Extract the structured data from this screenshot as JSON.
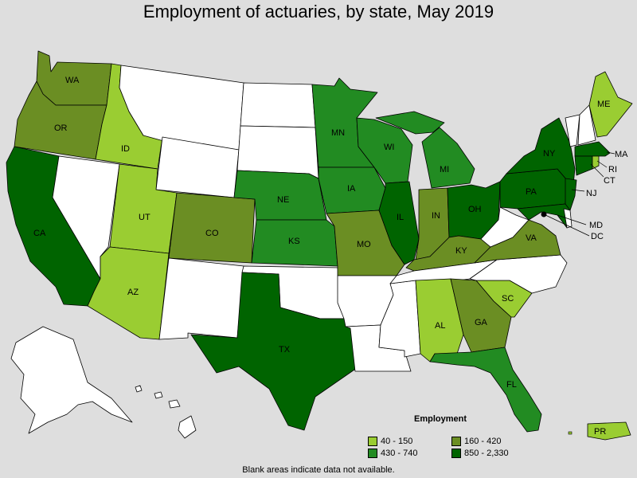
{
  "title": "Employment of actuaries, by state, May 2019",
  "legend": {
    "title": "Employment",
    "items": [
      {
        "label": "40 - 150",
        "color": "#9acd32"
      },
      {
        "label": "160 - 420",
        "color": "#6b8e23"
      },
      {
        "label": "430 - 740",
        "color": "#228b22"
      },
      {
        "label": "850 - 2,330",
        "color": "#006400"
      }
    ]
  },
  "footnote": "Blank areas indicate data not available.",
  "colors": {
    "blank": "#ffffff",
    "background": "#dedede"
  },
  "states": {
    "WA": "WA",
    "OR": "OR",
    "CA": "CA",
    "ID": "ID",
    "UT": "UT",
    "AZ": "AZ",
    "CO": "CO",
    "NE": "NE",
    "KS": "KS",
    "MN": "MN",
    "IA": "IA",
    "MO": "MO",
    "WI": "WI",
    "IL": "IL",
    "MI": "MI",
    "IN": "IN",
    "OH": "OH",
    "KY": "KY",
    "TX": "TX",
    "AL": "AL",
    "GA": "GA",
    "FL": "FL",
    "SC": "SC",
    "VA": "VA",
    "PA": "PA",
    "NY": "NY",
    "ME": "ME",
    "MA": "MA",
    "CT": "CT",
    "RI": "RI",
    "NJ": "NJ",
    "MD": "MD",
    "DC": "DC",
    "PR": "PR"
  }
}
